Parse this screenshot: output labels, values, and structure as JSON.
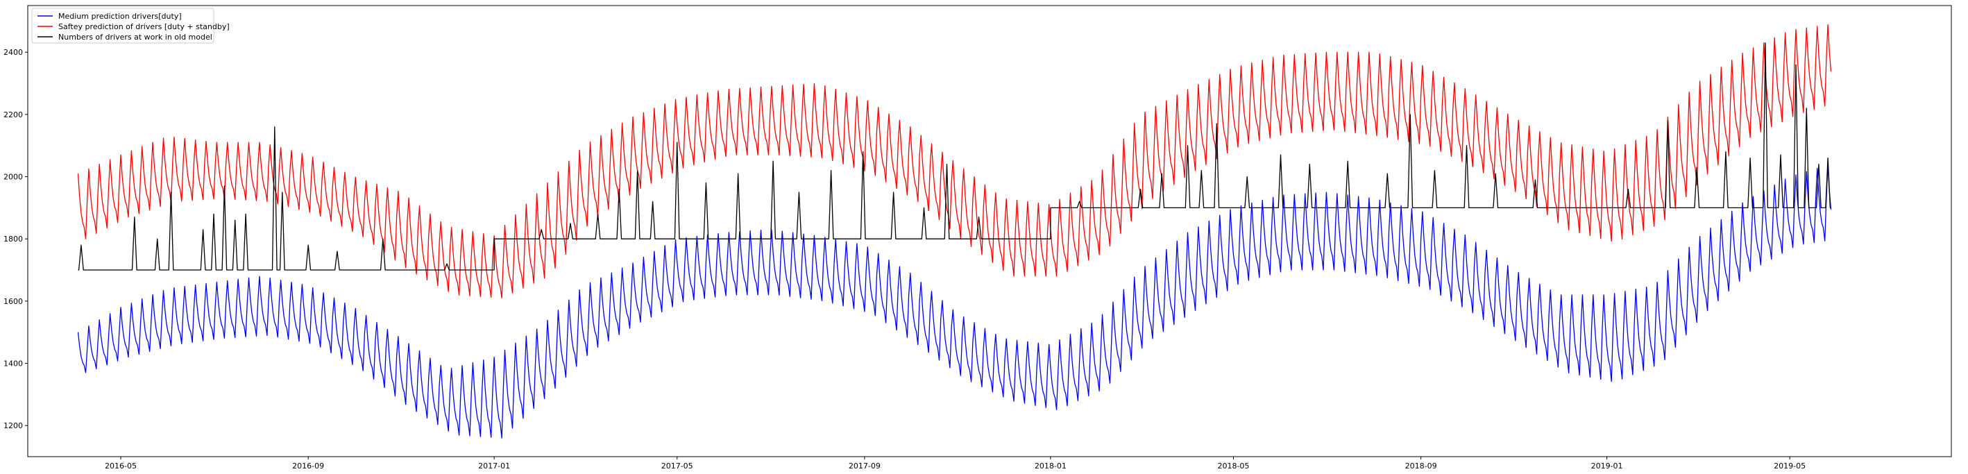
{
  "chart_data": {
    "type": "line",
    "title": "",
    "xlabel": "",
    "ylabel": "",
    "x_range": [
      "2016-03-01",
      "2019-08-15"
    ],
    "ylim": [
      1100,
      2550
    ],
    "grid": false,
    "legend_position": "top-left",
    "x_ticks": [
      "2016-05",
      "2016-09",
      "2017-01",
      "2017-05",
      "2017-09",
      "2018-01",
      "2018-05",
      "2018-09",
      "2019-01",
      "2019-05"
    ],
    "y_ticks": [
      1200,
      1400,
      1600,
      1800,
      2000,
      2200,
      2400
    ],
    "series": [
      {
        "name": "Medium prediction drivers[duty]",
        "color": "#0000ff",
        "weekly_low_high": [
          [
            "2016-04-03",
            1370,
            1500
          ],
          [
            "2016-05-01",
            1420,
            1580
          ],
          [
            "2016-06-01",
            1460,
            1640
          ],
          [
            "2016-07-01",
            1480,
            1660
          ],
          [
            "2016-08-01",
            1490,
            1680
          ],
          [
            "2016-09-01",
            1460,
            1650
          ],
          [
            "2016-10-01",
            1380,
            1580
          ],
          [
            "2016-11-01",
            1260,
            1480
          ],
          [
            "2016-12-01",
            1170,
            1380
          ],
          [
            "2017-01-01",
            1160,
            1420
          ],
          [
            "2017-02-01",
            1300,
            1520
          ],
          [
            "2017-03-01",
            1440,
            1650
          ],
          [
            "2017-04-01",
            1530,
            1720
          ],
          [
            "2017-05-01",
            1600,
            1800
          ],
          [
            "2017-06-01",
            1620,
            1820
          ],
          [
            "2017-07-01",
            1620,
            1830
          ],
          [
            "2017-08-01",
            1600,
            1810
          ],
          [
            "2017-09-01",
            1560,
            1780
          ],
          [
            "2017-10-01",
            1460,
            1690
          ],
          [
            "2017-11-01",
            1350,
            1560
          ],
          [
            "2017-12-01",
            1280,
            1480
          ],
          [
            "2018-01-01",
            1250,
            1460
          ],
          [
            "2018-02-01",
            1320,
            1540
          ],
          [
            "2018-03-01",
            1470,
            1700
          ],
          [
            "2018-04-01",
            1570,
            1820
          ],
          [
            "2018-05-01",
            1660,
            1900
          ],
          [
            "2018-06-01",
            1700,
            1940
          ],
          [
            "2018-07-01",
            1700,
            1950
          ],
          [
            "2018-08-01",
            1680,
            1930
          ],
          [
            "2018-09-01",
            1640,
            1890
          ],
          [
            "2018-10-01",
            1560,
            1810
          ],
          [
            "2018-11-01",
            1460,
            1700
          ],
          [
            "2018-12-01",
            1370,
            1620
          ],
          [
            "2019-01-01",
            1340,
            1620
          ],
          [
            "2019-02-01",
            1400,
            1650
          ],
          [
            "2019-03-01",
            1560,
            1800
          ],
          [
            "2019-04-01",
            1700,
            1920
          ],
          [
            "2019-05-01",
            1780,
            2000
          ],
          [
            "2019-05-28",
            1800,
            2040
          ]
        ]
      },
      {
        "name": "Saftey prediction of drivers [duty + standby]",
        "color": "#ff0000",
        "weekly_low_high": [
          [
            "2016-04-03",
            1800,
            2010
          ],
          [
            "2016-05-01",
            1870,
            2070
          ],
          [
            "2016-06-01",
            1920,
            2130
          ],
          [
            "2016-07-01",
            1930,
            2110
          ],
          [
            "2016-08-01",
            1920,
            2110
          ],
          [
            "2016-09-01",
            1880,
            2070
          ],
          [
            "2016-10-01",
            1810,
            2000
          ],
          [
            "2016-11-01",
            1700,
            1950
          ],
          [
            "2016-12-01",
            1620,
            1840
          ],
          [
            "2017-01-01",
            1610,
            1810
          ],
          [
            "2017-02-01",
            1680,
            1960
          ],
          [
            "2017-03-01",
            1860,
            2100
          ],
          [
            "2017-04-01",
            1960,
            2190
          ],
          [
            "2017-05-01",
            2030,
            2250
          ],
          [
            "2017-06-01",
            2070,
            2280
          ],
          [
            "2017-07-01",
            2070,
            2290
          ],
          [
            "2017-08-01",
            2060,
            2300
          ],
          [
            "2017-09-01",
            2010,
            2250
          ],
          [
            "2017-10-01",
            1920,
            2160
          ],
          [
            "2017-11-01",
            1790,
            2040
          ],
          [
            "2017-12-01",
            1680,
            1930
          ],
          [
            "2018-01-01",
            1680,
            1910
          ],
          [
            "2018-02-01",
            1760,
            2000
          ],
          [
            "2018-03-01",
            1920,
            2200
          ],
          [
            "2018-04-01",
            2020,
            2280
          ],
          [
            "2018-05-01",
            2100,
            2350
          ],
          [
            "2018-06-01",
            2140,
            2390
          ],
          [
            "2018-07-01",
            2150,
            2400
          ],
          [
            "2018-08-01",
            2130,
            2400
          ],
          [
            "2018-09-01",
            2100,
            2360
          ],
          [
            "2018-10-01",
            2030,
            2280
          ],
          [
            "2018-11-01",
            1940,
            2190
          ],
          [
            "2018-12-01",
            1830,
            2110
          ],
          [
            "2019-01-01",
            1790,
            2080
          ],
          [
            "2019-02-01",
            1850,
            2140
          ],
          [
            "2019-03-01",
            2000,
            2300
          ],
          [
            "2019-04-01",
            2130,
            2400
          ],
          [
            "2019-05-01",
            2200,
            2470
          ],
          [
            "2019-05-28",
            2240,
            2490
          ]
        ]
      },
      {
        "name": "Numbers of drivers at work in old model",
        "color": "#000000",
        "baseline_steps": [
          [
            "2016-04-03",
            1700
          ],
          [
            "2017-01-01",
            1800
          ],
          [
            "2018-01-01",
            1900
          ],
          [
            "2019-05-28",
            1900
          ]
        ],
        "spikes": [
          [
            "2016-04-05",
            1780
          ],
          [
            "2016-05-10",
            1870
          ],
          [
            "2016-05-25",
            1800
          ],
          [
            "2016-06-03",
            1950
          ],
          [
            "2016-06-24",
            1830
          ],
          [
            "2016-07-01",
            1880
          ],
          [
            "2016-07-08",
            1970
          ],
          [
            "2016-07-15",
            1860
          ],
          [
            "2016-07-22",
            1880
          ],
          [
            "2016-08-10",
            2160
          ],
          [
            "2016-08-15",
            1950
          ],
          [
            "2016-09-01",
            1780
          ],
          [
            "2016-09-20",
            1760
          ],
          [
            "2016-10-20",
            1800
          ],
          [
            "2016-12-01",
            1720
          ],
          [
            "2017-02-01",
            1830
          ],
          [
            "2017-02-20",
            1850
          ],
          [
            "2017-03-10",
            1880
          ],
          [
            "2017-03-24",
            1960
          ],
          [
            "2017-04-05",
            2020
          ],
          [
            "2017-04-15",
            1920
          ],
          [
            "2017-05-01",
            2110
          ],
          [
            "2017-05-20",
            1980
          ],
          [
            "2017-06-10",
            2010
          ],
          [
            "2017-07-03",
            2050
          ],
          [
            "2017-07-20",
            1950
          ],
          [
            "2017-08-10",
            2020
          ],
          [
            "2017-08-31",
            2080
          ],
          [
            "2017-09-20",
            1950
          ],
          [
            "2017-10-10",
            1900
          ],
          [
            "2017-10-25",
            2040
          ],
          [
            "2017-11-15",
            1870
          ],
          [
            "2018-01-20",
            1920
          ],
          [
            "2018-03-01",
            1960
          ],
          [
            "2018-03-15",
            2010
          ],
          [
            "2018-04-01",
            2100
          ],
          [
            "2018-04-10",
            2020
          ],
          [
            "2018-04-20",
            2170
          ],
          [
            "2018-05-10",
            2000
          ],
          [
            "2018-06-01",
            2070
          ],
          [
            "2018-06-20",
            2040
          ],
          [
            "2018-07-15",
            2050
          ],
          [
            "2018-08-10",
            2010
          ],
          [
            "2018-08-25",
            2200
          ],
          [
            "2018-09-10",
            2020
          ],
          [
            "2018-10-01",
            2100
          ],
          [
            "2018-10-20",
            2010
          ],
          [
            "2018-11-15",
            1990
          ],
          [
            "2019-01-15",
            1960
          ],
          [
            "2019-02-10",
            2180
          ],
          [
            "2019-03-01",
            2030
          ],
          [
            "2019-03-20",
            2080
          ],
          [
            "2019-04-05",
            2060
          ],
          [
            "2019-04-15",
            2430
          ],
          [
            "2019-04-25",
            2070
          ],
          [
            "2019-05-05",
            2360
          ],
          [
            "2019-05-12",
            2220
          ],
          [
            "2019-05-20",
            2040
          ],
          [
            "2019-05-26",
            2060
          ]
        ]
      }
    ]
  }
}
